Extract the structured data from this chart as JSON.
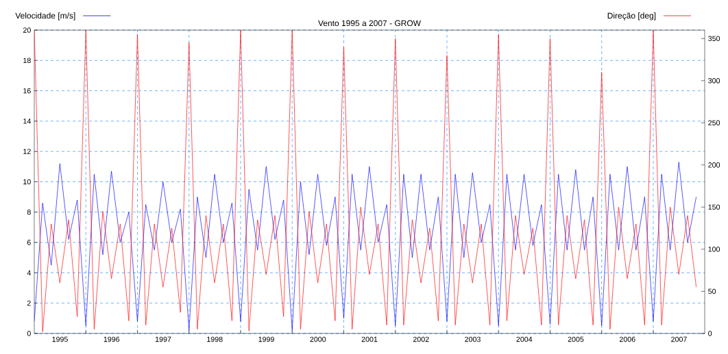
{
  "chart_data": {
    "type": "line",
    "title": "Vento 1995 a 2007 - GROW",
    "x": [
      "1995-01",
      "1995-03",
      "1995-05",
      "1995-07",
      "1995-09",
      "1995-11",
      "1996-01",
      "1996-03",
      "1996-05",
      "1996-07",
      "1996-09",
      "1996-11",
      "1997-01",
      "1997-03",
      "1997-05",
      "1997-07",
      "1997-09",
      "1997-11",
      "1998-01",
      "1998-03",
      "1998-05",
      "1998-07",
      "1998-09",
      "1998-11",
      "1999-01",
      "1999-03",
      "1999-05",
      "1999-07",
      "1999-09",
      "1999-11",
      "2000-01",
      "2000-03",
      "2000-05",
      "2000-07",
      "2000-09",
      "2000-11",
      "2001-01",
      "2001-03",
      "2001-05",
      "2001-07",
      "2001-09",
      "2001-11",
      "2002-01",
      "2002-03",
      "2002-05",
      "2002-07",
      "2002-09",
      "2002-11",
      "2003-01",
      "2003-03",
      "2003-05",
      "2003-07",
      "2003-09",
      "2003-11",
      "2004-01",
      "2004-03",
      "2004-05",
      "2004-07",
      "2004-09",
      "2004-11",
      "2005-01",
      "2005-03",
      "2005-05",
      "2005-07",
      "2005-09",
      "2005-11",
      "2006-01",
      "2006-03",
      "2006-05",
      "2006-07",
      "2006-09",
      "2006-11",
      "2007-01",
      "2007-03",
      "2007-05",
      "2007-07",
      "2007-09",
      "2007-11"
    ],
    "series": [
      {
        "name": "Velocidade [m/s]",
        "color": "#0000ff",
        "axis": "y",
        "values": [
          0.8,
          8.6,
          4.5,
          11.2,
          6.2,
          8.8,
          0.5,
          10.5,
          5.2,
          10.7,
          6,
          8,
          0.8,
          8.5,
          5.5,
          10,
          6,
          8.2,
          0.2,
          9,
          5,
          10.5,
          6,
          8.6,
          0.8,
          9.5,
          5.5,
          11,
          6.2,
          8.8,
          0.2,
          10,
          5.2,
          10.5,
          5.8,
          9,
          1,
          10.5,
          5.5,
          11,
          6,
          8.5,
          0.5,
          10.5,
          5,
          10.5,
          5.5,
          9,
          0.8,
          10.5,
          5,
          10.6,
          6,
          8.5,
          0.5,
          10.5,
          5.5,
          10.5,
          5.8,
          8.5,
          0.6,
          10.5,
          5.5,
          10.8,
          5.5,
          9,
          0.5,
          10.5,
          5.5,
          11,
          5.5,
          9,
          0.8,
          10.5,
          5.5,
          11.3,
          6,
          9
        ]
      },
      {
        "name": "Direção [deg]",
        "color": "#ff0000",
        "axis": "y2",
        "values": [
          360,
          2,
          130,
          60,
          135,
          20,
          360,
          5,
          145,
          65,
          130,
          15,
          355,
          10,
          130,
          55,
          125,
          25,
          345,
          5,
          140,
          60,
          130,
          15,
          360,
          3,
          135,
          70,
          140,
          20,
          360,
          5,
          145,
          60,
          130,
          15,
          340,
          5,
          150,
          70,
          130,
          10,
          350,
          10,
          135,
          60,
          125,
          15,
          330,
          10,
          130,
          60,
          130,
          10,
          355,
          15,
          140,
          70,
          125,
          10,
          350,
          10,
          140,
          65,
          135,
          10,
          310,
          5,
          150,
          65,
          130,
          10,
          360,
          10,
          150,
          70,
          140,
          55
        ]
      }
    ],
    "xlim": [
      "1995-01-01",
      "2007-12-31"
    ],
    "xticks": [
      {
        "value": "1996-01-01",
        "label": null
      },
      {
        "value": "1997-01-01",
        "label": null
      },
      {
        "value": "1998-01-01",
        "label": null
      },
      {
        "value": "1999-01-01",
        "label": null
      },
      {
        "value": "2000-01-01",
        "label": null
      },
      {
        "value": "2001-01-01",
        "label": null
      },
      {
        "value": "2002-01-01",
        "label": null
      },
      {
        "value": "2003-01-01",
        "label": null
      },
      {
        "value": "2004-01-01",
        "label": null
      },
      {
        "value": "2005-01-01",
        "label": null
      },
      {
        "value": "2006-01-01",
        "label": null
      },
      {
        "value": "2007-01-01",
        "label": null
      },
      {
        "value": "1995-07-02",
        "label": "1995"
      },
      {
        "value": "1996-07-02",
        "label": "1996"
      },
      {
        "value": "1997-07-02",
        "label": "1997"
      },
      {
        "value": "1998-07-02",
        "label": "1998"
      },
      {
        "value": "1999-07-02",
        "label": "1999"
      },
      {
        "value": "2000-07-02",
        "label": "2000"
      },
      {
        "value": "2001-07-02",
        "label": "2001"
      },
      {
        "value": "2002-07-02",
        "label": "2002"
      },
      {
        "value": "2003-07-02",
        "label": "2003"
      },
      {
        "value": "2004-07-02",
        "label": "2004"
      },
      {
        "value": "2005-07-02",
        "label": "2005"
      },
      {
        "value": "2006-07-02",
        "label": "2006"
      },
      {
        "value": "2007-07-02",
        "label": "2007"
      }
    ],
    "ylim": [
      0,
      20
    ],
    "yticks": [
      0,
      2,
      4,
      6,
      8,
      10,
      12,
      14,
      16,
      18,
      20
    ],
    "y2lim": [
      0,
      360
    ],
    "y2ticks": [
      0,
      50,
      100,
      150,
      200,
      250,
      300,
      350
    ],
    "grid": true,
    "legend": "top"
  }
}
